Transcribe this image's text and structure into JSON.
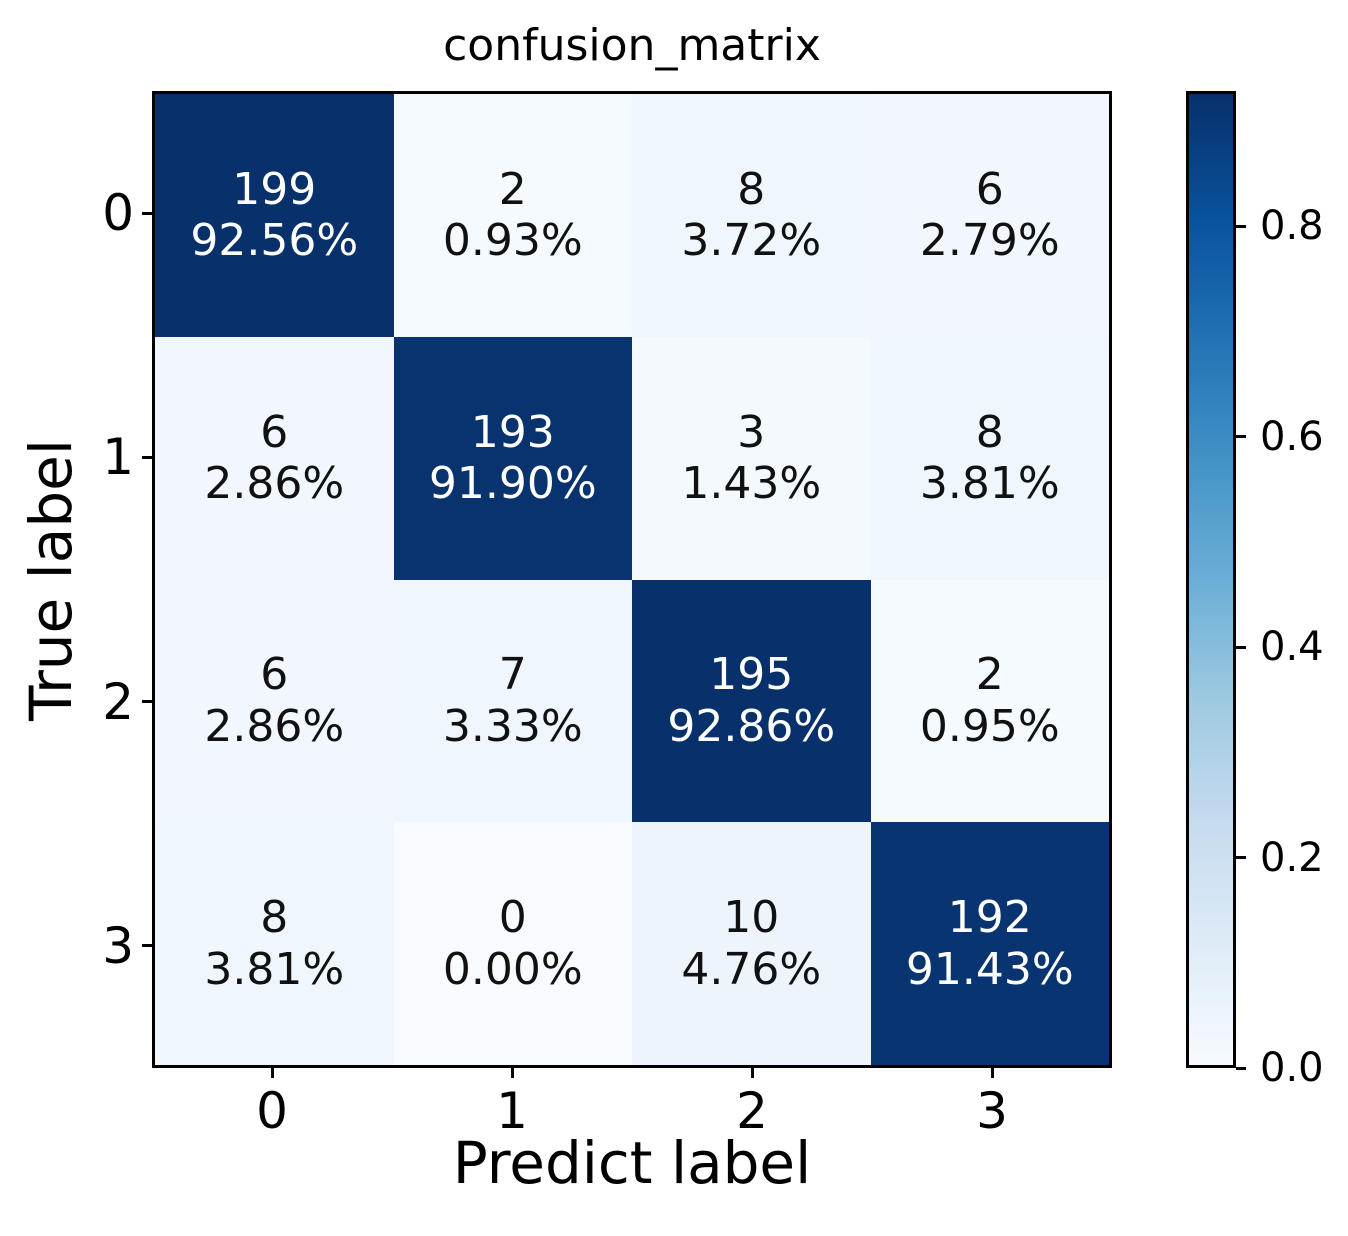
{
  "chart_data": {
    "type": "heatmap",
    "title": "confusion_matrix",
    "xlabel": "Predict label",
    "ylabel": "True label",
    "x_tick_labels": [
      "0",
      "1",
      "2",
      "3"
    ],
    "y_tick_labels": [
      "0",
      "1",
      "2",
      "3"
    ],
    "rows": [
      {
        "true_label": "0",
        "cells": [
          {
            "count": "199",
            "percent": "92.56%"
          },
          {
            "count": "2",
            "percent": "0.93%"
          },
          {
            "count": "8",
            "percent": "3.72%"
          },
          {
            "count": "6",
            "percent": "2.79%"
          }
        ]
      },
      {
        "true_label": "1",
        "cells": [
          {
            "count": "6",
            "percent": "2.86%"
          },
          {
            "count": "193",
            "percent": "91.90%"
          },
          {
            "count": "3",
            "percent": "1.43%"
          },
          {
            "count": "8",
            "percent": "3.81%"
          }
        ]
      },
      {
        "true_label": "2",
        "cells": [
          {
            "count": "6",
            "percent": "2.86%"
          },
          {
            "count": "7",
            "percent": "3.33%"
          },
          {
            "count": "195",
            "percent": "92.86%"
          },
          {
            "count": "2",
            "percent": "0.95%"
          }
        ]
      },
      {
        "true_label": "3",
        "cells": [
          {
            "count": "8",
            "percent": "3.81%"
          },
          {
            "count": "0",
            "percent": "0.00%"
          },
          {
            "count": "10",
            "percent": "4.76%"
          },
          {
            "count": "192",
            "percent": "91.43%"
          }
        ]
      }
    ],
    "colormap": "Blues",
    "value_range": [
      0.0,
      0.9286
    ],
    "grid": false,
    "colorbar": {
      "position": "right",
      "tick_labels": [
        "0.8",
        "0.6",
        "0.4",
        "0.2",
        "0.0"
      ],
      "tick_values": [
        0.8,
        0.6,
        0.4,
        0.2,
        0.0
      ]
    },
    "colors": {
      "text_on_dark": "#ffffff",
      "text_on_light": "#111111",
      "axis": "#000000",
      "blues_stops": [
        {
          "pos": 0.0,
          "hex": "#f7fbff"
        },
        {
          "pos": 0.125,
          "hex": "#deebf7"
        },
        {
          "pos": 0.25,
          "hex": "#c6dbef"
        },
        {
          "pos": 0.375,
          "hex": "#9ecae1"
        },
        {
          "pos": 0.5,
          "hex": "#6baed6"
        },
        {
          "pos": 0.625,
          "hex": "#4292c6"
        },
        {
          "pos": 0.75,
          "hex": "#2171b5"
        },
        {
          "pos": 0.875,
          "hex": "#08519c"
        },
        {
          "pos": 1.0,
          "hex": "#08306b"
        }
      ]
    }
  }
}
